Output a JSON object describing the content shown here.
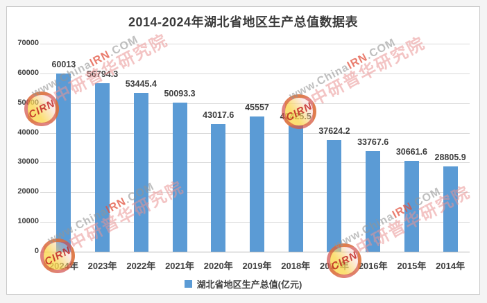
{
  "chart_data": {
    "type": "bar",
    "title": "2014-2024年湖北省地区生产总值数据表",
    "categories": [
      "2024年",
      "2023年",
      "2022年",
      "2021年",
      "2020年",
      "2019年",
      "2018年",
      "2017年",
      "2016年",
      "2015年",
      "2014年"
    ],
    "series": [
      {
        "name": "湖北省地区生产总值(亿元)",
        "values": [
          60013,
          56794.3,
          53445.4,
          50093.3,
          43017.6,
          45557,
          42425.5,
          37624.2,
          33767.6,
          30661.6,
          28805.9
        ]
      }
    ],
    "data_labels": [
      "60013",
      "56794.3",
      "53445.4",
      "50093.3",
      "43017.6",
      "45557",
      "42425.5",
      "37624.2",
      "33767.6",
      "30661.6",
      "28805.9"
    ],
    "xlabel": "",
    "ylabel": "",
    "ylim": [
      0,
      70000
    ],
    "ytick_step": 10000,
    "yticks": [
      "0",
      "10000",
      "20000",
      "30000",
      "40000",
      "50000",
      "60000",
      "70000"
    ],
    "grid": true,
    "legend_position": "bottom"
  },
  "colors": {
    "bar": "#5B9BD5",
    "grid": "#D9D9D9",
    "axis_line": "#B5B5B5",
    "title_text": "#3A3A3A",
    "label_text": "#404040",
    "watermark_red": "#C82D2D",
    "watermark_pink": "#E99494",
    "watermark_gray": "#949494"
  },
  "legend": {
    "label": "湖北省地区生产总值(亿元)"
  },
  "watermark": {
    "logo_text": "CIRN",
    "line1_prefix": "www.China",
    "line1_mid": "IRN",
    "line1_suffix": ".COM",
    "line2": "中研普华研究院"
  }
}
